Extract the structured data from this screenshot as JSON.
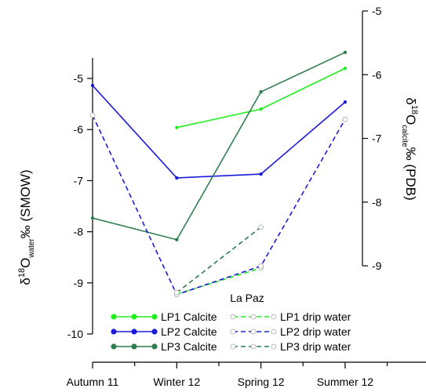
{
  "chart_data": {
    "type": "line",
    "categories": [
      "Autumn 11",
      "Winter 12",
      "Spring 12",
      "Summer 12"
    ],
    "ylabel": {
      "prefix": "δ",
      "sup": "18",
      "main": "O",
      "sub": "water",
      "suffix": "‰ (SMOW)"
    },
    "y2label": {
      "prefix": "δ",
      "sup": "18",
      "main": "O",
      "sub": "calcite",
      "suffix": "‰ (PDB)"
    },
    "ylim": [
      -10,
      -3.68
    ],
    "yticks": [
      -5,
      -6,
      -7,
      -8,
      -9,
      -10
    ],
    "y2lim": [
      -10.07,
      -5
    ],
    "y2ticks": [
      -5,
      -6,
      -7,
      -8,
      -9
    ],
    "legend_title": "La Paz",
    "series": [
      {
        "name": "LP1 Calcite",
        "color": "#22ee22",
        "axis": "y2",
        "style": "solid",
        "values": [
          null,
          -6.83,
          -6.54,
          -5.9
        ]
      },
      {
        "name": "LP2 Calcite",
        "color": "#1a1adb",
        "axis": "y2",
        "style": "solid",
        "values": [
          -6.17,
          -7.62,
          -7.56,
          -6.43
        ]
      },
      {
        "name": "LP3 Calcite",
        "color": "#2e7d4f",
        "axis": "y2",
        "style": "solid",
        "values": [
          -8.25,
          -8.59,
          -6.27,
          -5.65
        ]
      },
      {
        "name": "LP1 drip water",
        "color": "#22ee22",
        "axis": "y",
        "style": "dashed",
        "values": [
          null,
          -9.22,
          -8.71,
          null
        ]
      },
      {
        "name": "LP2 drip water",
        "color": "#1a1adb",
        "axis": "y",
        "style": "dashed",
        "values": [
          -5.72,
          -9.23,
          -8.67,
          -5.8
        ]
      },
      {
        "name": "LP3 drip water",
        "color": "#2e7d4f",
        "axis": "y",
        "style": "dashed",
        "values": [
          null,
          -9.19,
          -7.91,
          null
        ]
      }
    ]
  }
}
